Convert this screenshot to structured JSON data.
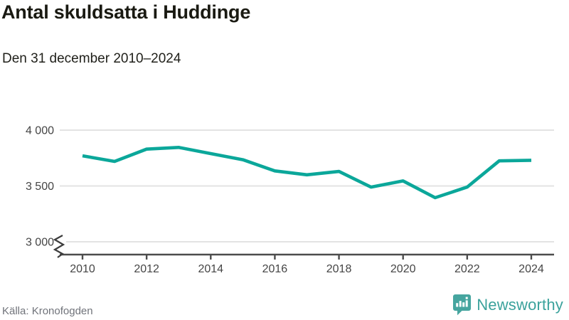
{
  "header": {
    "title": "Antal skuldsatta i Huddinge",
    "subtitle": "Den 31 december 2010–2024"
  },
  "chart_data": {
    "type": "line",
    "title": "Antal skuldsatta i Huddinge",
    "subtitle": "Den 31 december 2010–2024",
    "x": [
      2010,
      2011,
      2012,
      2013,
      2014,
      2015,
      2016,
      2017,
      2018,
      2019,
      2020,
      2021,
      2022,
      2023,
      2024
    ],
    "values": [
      3770,
      3720,
      3830,
      3845,
      3790,
      3735,
      3635,
      3600,
      3630,
      3490,
      3545,
      3395,
      3490,
      3725,
      3730
    ],
    "series_color": "#0ba79a",
    "ylim": [
      3000,
      4000
    ],
    "yticks": [
      {
        "value": 4000,
        "label": "4 000"
      },
      {
        "value": 3500,
        "label": "3 500"
      },
      {
        "value": 3000,
        "label": "3 000"
      }
    ],
    "xticks": [
      2010,
      2012,
      2014,
      2016,
      2018,
      2020,
      2022,
      2024
    ],
    "axis_break": true,
    "grid": "horizontal",
    "legend": "none",
    "xlabel": "",
    "ylabel": ""
  },
  "footer": {
    "source": "Källa: Kronofogden",
    "brand": "Newsworthy"
  },
  "colors": {
    "line": "#0ba79a",
    "gridline": "#e3e3e3",
    "axis": "#4c4c4c",
    "tick_label": "#454545",
    "brand_teal": "#46a59f"
  }
}
